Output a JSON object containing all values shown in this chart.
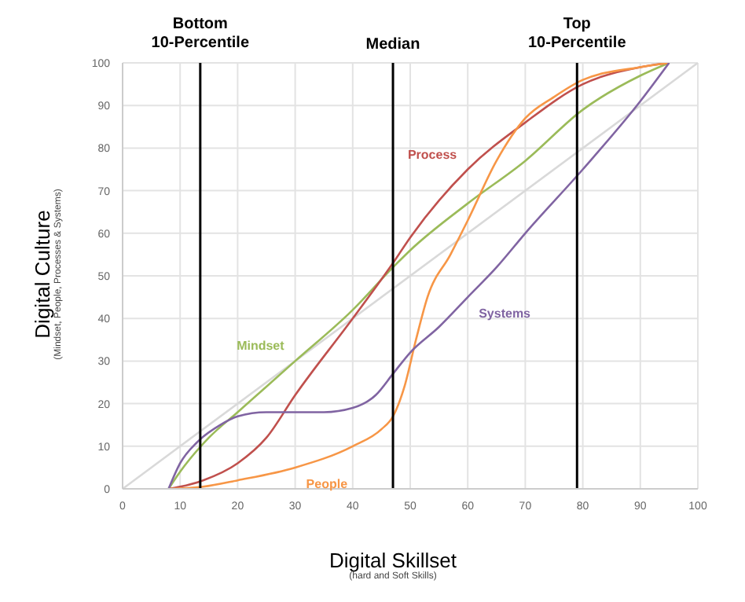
{
  "chart_data": {
    "type": "line",
    "xlabel": "Digital Skillset",
    "ylabel": "Digital Culture",
    "annotations": [
      "(hard and Soft Skills)",
      "(Mindset, People, Processes & Systems)"
    ],
    "xlim": [
      0,
      100
    ],
    "xticks": [
      0,
      10,
      20,
      30,
      40,
      50,
      60,
      70,
      80,
      90,
      100
    ],
    "ylim": [
      0,
      100
    ],
    "yticks": [
      0,
      10,
      20,
      30,
      40,
      50,
      60,
      70,
      80,
      90,
      100
    ],
    "grid": true,
    "legend": false,
    "marker": "none",
    "line_style": "solid",
    "series": [
      {
        "color": "#d9d9d9",
        "x": [
          0,
          100
        ],
        "values": [
          0,
          100
        ]
      },
      {
        "name": "Mindset",
        "color": "#9bbb59",
        "x": [
          8,
          10,
          15,
          20,
          30,
          40,
          47,
          50,
          60,
          70,
          80,
          90,
          95
        ],
        "values": [
          0,
          4,
          12,
          18,
          30,
          42,
          52,
          56,
          67,
          77,
          89,
          97,
          100
        ]
      },
      {
        "name": "Process",
        "color": "#c0504d",
        "x": [
          8,
          10,
          14,
          20,
          25,
          30,
          40,
          47,
          50,
          60,
          70,
          80,
          90,
          95
        ],
        "values": [
          0,
          0.5,
          2,
          6,
          12,
          22,
          40,
          53,
          59,
          75,
          86,
          95,
          99,
          100
        ]
      },
      {
        "name": "People",
        "color": "#f79646",
        "x": [
          8,
          14,
          20,
          30,
          40,
          45,
          47,
          49,
          51,
          53,
          57,
          60,
          65,
          70,
          75,
          80,
          90,
          95
        ],
        "values": [
          0,
          0.5,
          2,
          5,
          10,
          14,
          17,
          24,
          35,
          45,
          55,
          63,
          77,
          87,
          92,
          96,
          99,
          100
        ]
      },
      {
        "name": "Systems",
        "color": "#8064a2",
        "x": [
          8,
          10,
          13,
          17,
          20,
          25,
          35,
          40,
          44,
          47,
          50,
          55,
          60,
          65,
          70,
          80,
          90,
          95
        ],
        "values": [
          0,
          6,
          11,
          15,
          17,
          18,
          18,
          19,
          22,
          27,
          32,
          38,
          45,
          52,
          60,
          75,
          91,
          100
        ]
      }
    ],
    "ref_lines": [
      {
        "axis": "x",
        "value": 13.5,
        "label": "Bottom\n10-Percentile",
        "color": "#000000"
      },
      {
        "axis": "x",
        "value": 47,
        "label": "Median",
        "color": "#000000"
      },
      {
        "axis": "x",
        "value": 79,
        "label": "Top\n10-Percentile",
        "color": "#000000"
      }
    ]
  }
}
